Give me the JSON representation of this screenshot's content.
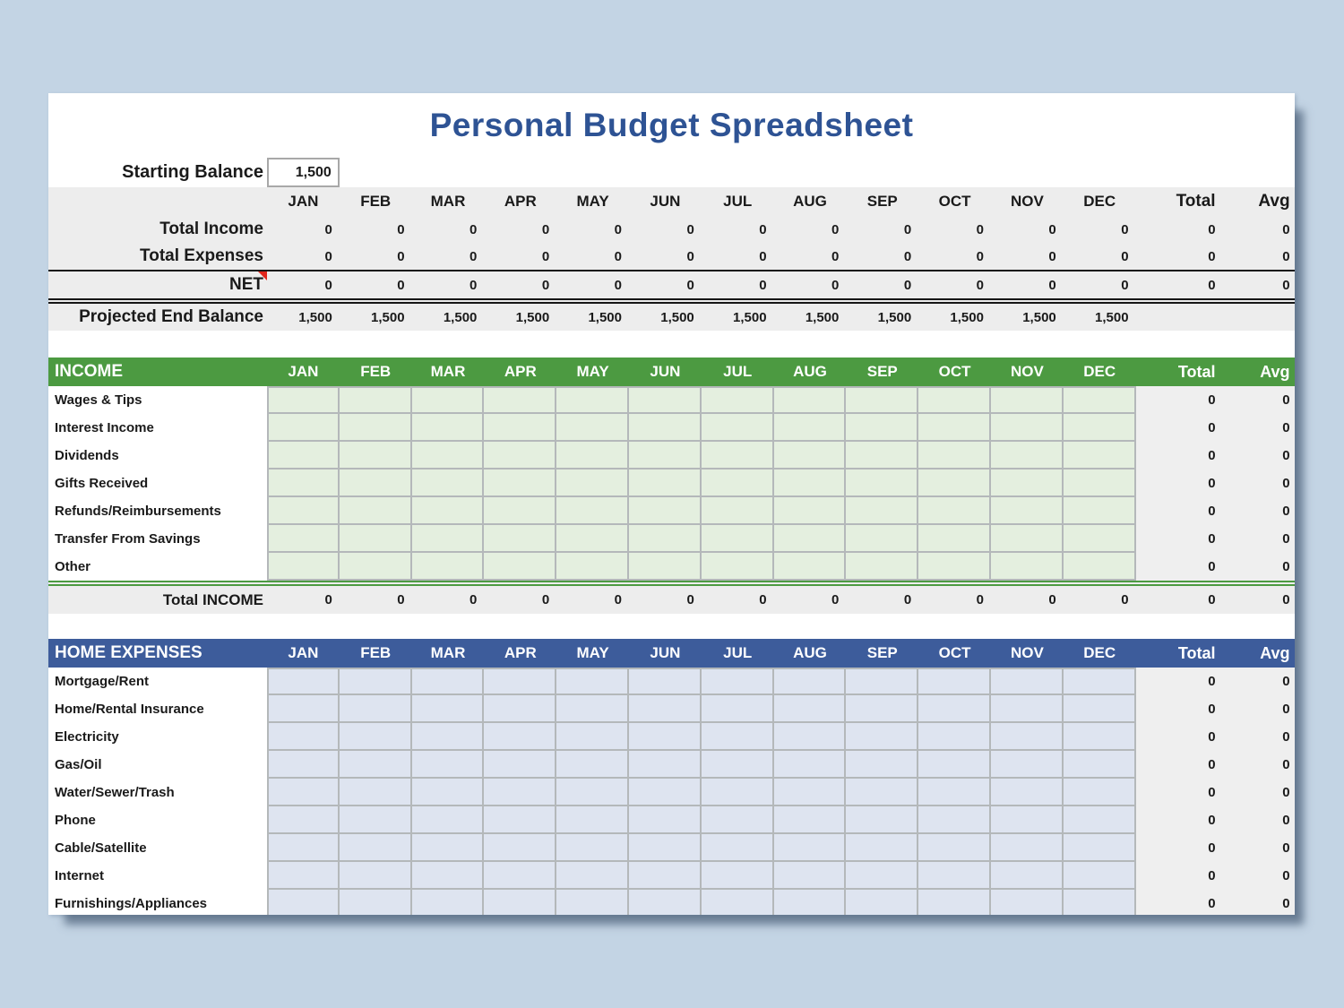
{
  "title": "Personal Budget Spreadsheet",
  "colors": {
    "page_bg": "#c3d4e4",
    "sheet_bg": "#ffffff",
    "summary_band_bg": "#ededed",
    "income_header_bg": "#4c9a41",
    "income_cell_bg": "#e4efdf",
    "expense_header_bg": "#3d5c9b",
    "expense_cell_bg": "#dee4f0",
    "gridline": "#b4b8ba",
    "total_area_bg": "#efefef",
    "title_color": "#2e5394",
    "comment_marker": "#e0261c"
  },
  "months": [
    "JAN",
    "FEB",
    "MAR",
    "APR",
    "MAY",
    "JUN",
    "JUL",
    "AUG",
    "SEP",
    "OCT",
    "NOV",
    "DEC"
  ],
  "total_header": "Total",
  "avg_header": "Avg",
  "starting_balance": {
    "label": "Starting Balance",
    "value": "1,500"
  },
  "summary_rows": [
    {
      "label": "Total Income",
      "values": [
        "0",
        "0",
        "0",
        "0",
        "0",
        "0",
        "0",
        "0",
        "0",
        "0",
        "0",
        "0"
      ],
      "total": "0",
      "avg": "0",
      "comment": false
    },
    {
      "label": "Total Expenses",
      "values": [
        "0",
        "0",
        "0",
        "0",
        "0",
        "0",
        "0",
        "0",
        "0",
        "0",
        "0",
        "0"
      ],
      "total": "0",
      "avg": "0",
      "comment": false
    },
    {
      "label": "NET",
      "values": [
        "0",
        "0",
        "0",
        "0",
        "0",
        "0",
        "0",
        "0",
        "0",
        "0",
        "0",
        "0"
      ],
      "total": "0",
      "avg": "0",
      "comment": true
    }
  ],
  "projected_row": {
    "label": "Projected End Balance",
    "values": [
      "1,500",
      "1,500",
      "1,500",
      "1,500",
      "1,500",
      "1,500",
      "1,500",
      "1,500",
      "1,500",
      "1,500",
      "1,500",
      "1,500"
    ]
  },
  "sections": [
    {
      "id": "income",
      "title": "INCOME",
      "theme": "green",
      "items": [
        {
          "label": "Wages & Tips",
          "total": "0",
          "avg": "0"
        },
        {
          "label": "Interest Income",
          "total": "0",
          "avg": "0"
        },
        {
          "label": "Dividends",
          "total": "0",
          "avg": "0"
        },
        {
          "label": "Gifts Received",
          "total": "0",
          "avg": "0"
        },
        {
          "label": "Refunds/Reimbursements",
          "total": "0",
          "avg": "0"
        },
        {
          "label": "Transfer From Savings",
          "total": "0",
          "avg": "0"
        },
        {
          "label": "Other",
          "total": "0",
          "avg": "0"
        }
      ],
      "footer": {
        "label": "Total INCOME",
        "values": [
          "0",
          "0",
          "0",
          "0",
          "0",
          "0",
          "0",
          "0",
          "0",
          "0",
          "0",
          "0"
        ],
        "total": "0",
        "avg": "0"
      }
    },
    {
      "id": "home-expenses",
      "title": "HOME EXPENSES",
      "theme": "blue",
      "items": [
        {
          "label": "Mortgage/Rent",
          "total": "0",
          "avg": "0"
        },
        {
          "label": "Home/Rental Insurance",
          "total": "0",
          "avg": "0"
        },
        {
          "label": "Electricity",
          "total": "0",
          "avg": "0"
        },
        {
          "label": "Gas/Oil",
          "total": "0",
          "avg": "0"
        },
        {
          "label": "Water/Sewer/Trash",
          "total": "0",
          "avg": "0"
        },
        {
          "label": "Phone",
          "total": "0",
          "avg": "0"
        },
        {
          "label": "Cable/Satellite",
          "total": "0",
          "avg": "0"
        },
        {
          "label": "Internet",
          "total": "0",
          "avg": "0"
        },
        {
          "label": "Furnishings/Appliances",
          "total": "0",
          "avg": "0"
        }
      ],
      "footer": null
    }
  ]
}
